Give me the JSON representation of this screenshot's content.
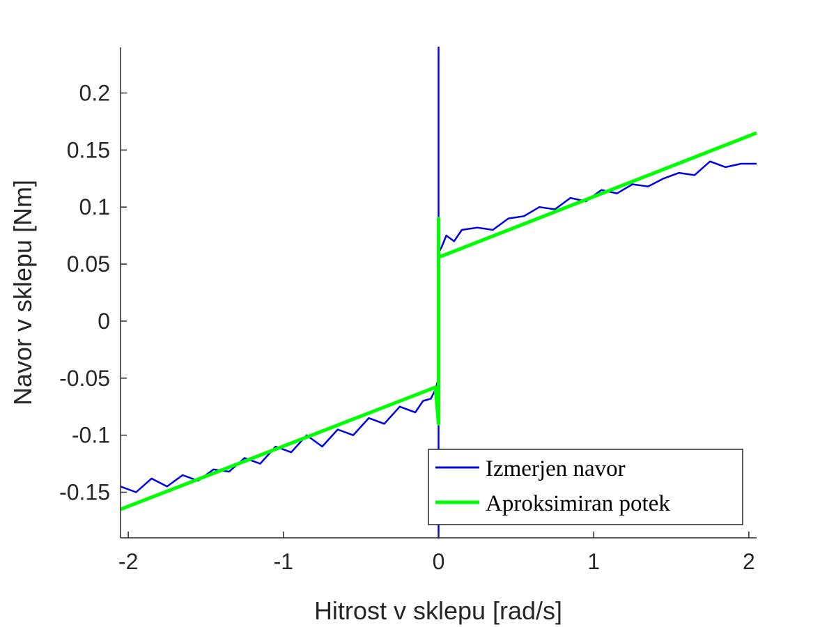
{
  "chart_data": {
    "type": "line",
    "xlabel": "Hitrost v sklepu [rad/s]",
    "ylabel": "Navor v sklepu [Nm]",
    "xlim": [
      -2.05,
      2.05
    ],
    "ylim": [
      -0.19,
      0.24
    ],
    "x_ticks": [
      -2,
      -1,
      0,
      1,
      2
    ],
    "x_tick_labels": [
      "-2",
      "-1",
      "0",
      "1",
      "2"
    ],
    "y_ticks": [
      -0.15,
      -0.1,
      -0.05,
      0,
      0.05,
      0.1,
      0.15,
      0.2
    ],
    "y_tick_labels": [
      "-0.15",
      "-0.1",
      "-0.05",
      "0",
      "0.05",
      "0.1",
      "0.15",
      "0.2"
    ],
    "grid": false,
    "legend_position": "bottom-right",
    "series": [
      {
        "name": "Izmerjen navor",
        "color": "#0000e6",
        "x": [
          -2.05,
          -1.95,
          -1.85,
          -1.75,
          -1.65,
          -1.55,
          -1.45,
          -1.35,
          -1.25,
          -1.15,
          -1.05,
          -0.95,
          -0.85,
          -0.75,
          -0.65,
          -0.55,
          -0.45,
          -0.35,
          -0.25,
          -0.15,
          -0.1,
          -0.05,
          -0.02,
          0,
          0,
          0,
          0,
          0,
          0.02,
          0.05,
          0.1,
          0.15,
          0.25,
          0.35,
          0.45,
          0.55,
          0.65,
          0.75,
          0.85,
          0.95,
          1.05,
          1.15,
          1.25,
          1.35,
          1.45,
          1.55,
          1.65,
          1.75,
          1.85,
          1.95,
          2.05
        ],
        "y": [
          -0.145,
          -0.15,
          -0.138,
          -0.145,
          -0.135,
          -0.14,
          -0.13,
          -0.132,
          -0.12,
          -0.125,
          -0.11,
          -0.115,
          -0.1,
          -0.11,
          -0.095,
          -0.1,
          -0.085,
          -0.09,
          -0.075,
          -0.08,
          -0.07,
          -0.068,
          -0.06,
          -0.05,
          0.24,
          -0.19,
          0.12,
          0.06,
          0.065,
          0.075,
          0.07,
          0.08,
          0.082,
          0.08,
          0.09,
          0.092,
          0.1,
          0.098,
          0.108,
          0.105,
          0.115,
          0.112,
          0.12,
          0.118,
          0.125,
          0.13,
          0.128,
          0.14,
          0.135,
          0.138,
          0.138
        ]
      },
      {
        "name": "Aproksimiran potek",
        "color": "#00ff00",
        "x": [
          -2.05,
          -0.02,
          0,
          0,
          0,
          0.02,
          2.05
        ],
        "y": [
          -0.165,
          -0.058,
          -0.09,
          0.09,
          0.057,
          0.057,
          0.165
        ]
      }
    ]
  }
}
